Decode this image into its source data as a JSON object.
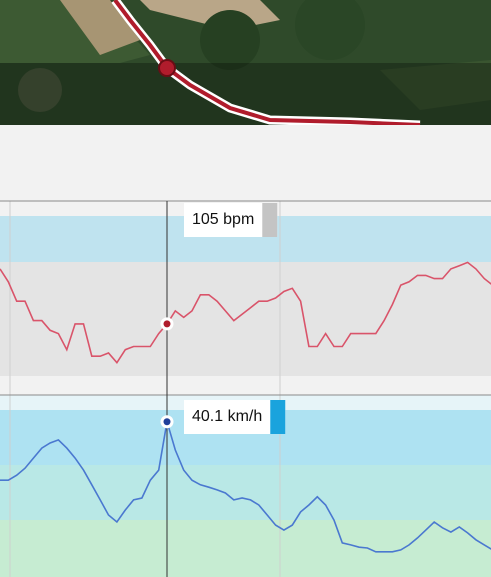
{
  "chart_data": [
    {
      "type": "line",
      "color": "#d9546a",
      "ylim": [
        83,
        143
      ],
      "values": [
        122,
        118,
        112,
        112,
        106,
        106,
        103,
        102,
        97,
        105,
        105,
        95,
        95,
        96,
        93,
        97,
        98,
        98,
        98,
        102,
        105,
        109,
        107,
        109,
        114,
        114,
        112,
        109,
        106,
        108,
        110,
        112,
        112,
        113,
        115,
        116,
        112,
        98,
        98,
        102,
        98,
        98,
        102,
        102,
        102,
        102,
        106,
        111,
        117,
        118,
        120,
        120,
        119,
        119,
        122,
        123,
        124,
        122,
        119,
        117
      ],
      "value_labels": [
        null,
        null,
        null,
        null,
        null,
        null,
        null,
        null,
        null,
        null,
        null,
        null,
        null,
        null,
        null,
        null,
        null,
        null,
        null,
        null,
        "105 bpm",
        null,
        null,
        null,
        null,
        null,
        null,
        null,
        null,
        null,
        null,
        null,
        null,
        null,
        null,
        null,
        null,
        null,
        null,
        null,
        null,
        null,
        null,
        null,
        null,
        null,
        null,
        null,
        null,
        null,
        null,
        null,
        null,
        null,
        null,
        null,
        null,
        null,
        null,
        null
      ]
    },
    {
      "type": "line",
      "color": "#4a78d0",
      "ylim": [
        0,
        47
      ],
      "values": [
        25.0,
        25.0,
        26.3,
        28.1,
        30.7,
        33.3,
        34.6,
        35.4,
        33.3,
        30.7,
        27.6,
        23.8,
        19.9,
        16.0,
        14.2,
        17.3,
        19.9,
        20.4,
        25.0,
        27.6,
        40.1,
        32.8,
        27.6,
        25.0,
        23.8,
        23.2,
        22.5,
        21.7,
        19.9,
        20.4,
        19.9,
        18.6,
        16.0,
        13.4,
        12.1,
        13.4,
        16.8,
        18.6,
        20.7,
        18.6,
        14.7,
        8.8,
        8.3,
        7.7,
        7.5,
        6.5,
        6.5,
        6.5,
        7.0,
        8.3,
        10.1,
        12.1,
        14.2,
        12.7,
        11.6,
        12.9,
        11.4,
        9.6,
        8.3,
        7.0
      ],
      "value_labels": [
        null,
        null,
        null,
        null,
        null,
        null,
        null,
        null,
        null,
        null,
        null,
        null,
        null,
        null,
        null,
        null,
        null,
        null,
        null,
        null,
        "40.1 km/h",
        null,
        null,
        null,
        null,
        null,
        null,
        null,
        null,
        null,
        null,
        null,
        null,
        null,
        null,
        null,
        null,
        null,
        null,
        null,
        null,
        null,
        null,
        null,
        null,
        null,
        null,
        null,
        null,
        null,
        null,
        null,
        null,
        null,
        null,
        null,
        null,
        null,
        null,
        null
      ]
    }
  ]
}
